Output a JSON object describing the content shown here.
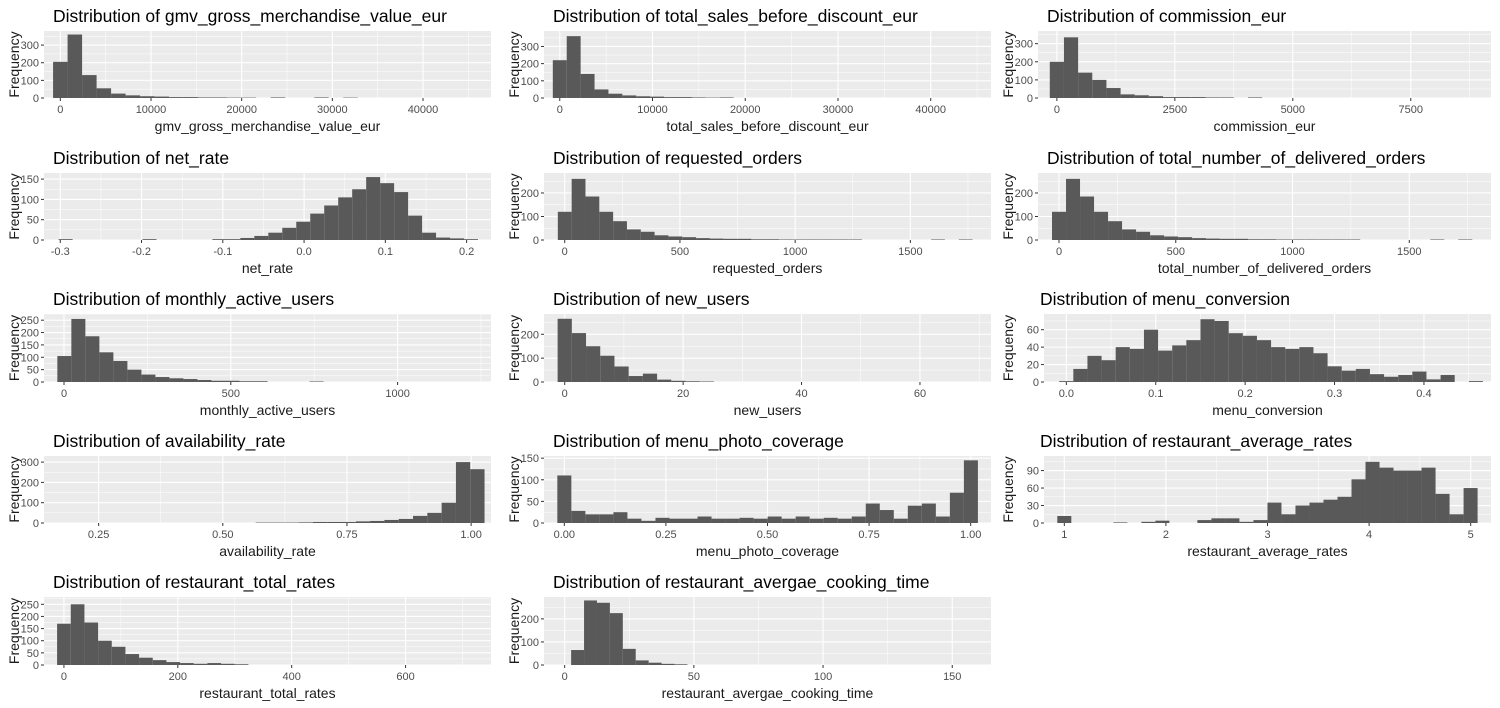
{
  "chart_data": [
    {
      "type": "bar",
      "variant": "histogram",
      "title": "Distribution of gmv_gross_merchandise_value_eur",
      "xlabel": "gmv_gross_merchandise_value_eur",
      "ylabel": "Frequency",
      "xlim": [
        -1800,
        47500
      ],
      "ylim": [
        0,
        380
      ],
      "xticks": [
        0,
        10000,
        20000,
        30000,
        40000
      ],
      "yticks": [
        0,
        100,
        200,
        300
      ],
      "bin_start": -800,
      "bin_width": 1600,
      "values": [
        205,
        360,
        130,
        55,
        25,
        15,
        10,
        8,
        5,
        5,
        3,
        3,
        2,
        2,
        0,
        3,
        0,
        0,
        3,
        0,
        2,
        0,
        0,
        0,
        0,
        0,
        0,
        0,
        0,
        0
      ]
    },
    {
      "type": "bar",
      "variant": "histogram",
      "title": "Distribution of total_sales_before_discount_eur",
      "xlabel": "total_sales_before_discount_eur",
      "ylabel": "Frequency",
      "xlim": [
        -1700,
        46500
      ],
      "ylim": [
        0,
        390
      ],
      "xticks": [
        0,
        10000,
        20000,
        30000,
        40000
      ],
      "yticks": [
        0,
        100,
        200,
        300
      ],
      "bin_start": -750,
      "bin_width": 1500,
      "values": [
        220,
        360,
        140,
        50,
        25,
        15,
        10,
        8,
        5,
        5,
        3,
        2,
        3,
        0,
        0,
        0,
        0,
        0,
        0,
        0,
        0,
        0,
        0,
        0,
        0,
        0,
        0,
        0,
        0,
        0
      ]
    },
    {
      "type": "bar",
      "variant": "histogram",
      "title": "Distribution of commission_eur",
      "xlabel": "commission_eur",
      "ylabel": "Frequency",
      "xlim": [
        -400,
        9200
      ],
      "ylim": [
        0,
        370
      ],
      "xticks": [
        0,
        2500,
        5000,
        7500
      ],
      "yticks": [
        0,
        100,
        200,
        300
      ],
      "bin_start": -150,
      "bin_width": 300,
      "values": [
        200,
        335,
        140,
        100,
        55,
        20,
        15,
        10,
        5,
        5,
        5,
        3,
        3,
        0,
        3,
        0,
        0,
        0,
        0,
        0,
        0,
        0,
        0,
        0,
        0,
        0,
        0,
        0,
        0,
        0
      ]
    },
    {
      "type": "bar",
      "variant": "histogram",
      "title": "Distribution of net_rate",
      "xlabel": "net_rate",
      "ylabel": "Frequency",
      "xlim": [
        -0.32,
        0.23
      ],
      "ylim": [
        0,
        165
      ],
      "xticks": [
        -0.3,
        -0.2,
        -0.1,
        0.0,
        0.1,
        0.2
      ],
      "yticks": [
        0,
        50,
        100,
        150
      ],
      "bin_start": -0.302,
      "bin_width": 0.0172,
      "values": [
        2,
        0,
        0,
        0,
        0,
        0,
        2,
        0,
        0,
        0,
        0,
        2,
        2,
        5,
        10,
        18,
        30,
        45,
        65,
        85,
        105,
        125,
        155,
        140,
        118,
        60,
        18,
        6,
        4,
        2
      ]
    },
    {
      "type": "bar",
      "variant": "histogram",
      "title": "Distribution of requested_orders",
      "xlabel": "requested_orders",
      "ylabel": "Frequency",
      "xlim": [
        -90,
        1850
      ],
      "ylim": [
        0,
        285
      ],
      "xticks": [
        0,
        500,
        1000,
        1500
      ],
      "yticks": [
        0,
        100,
        200
      ],
      "bin_start": -30,
      "bin_width": 60,
      "values": [
        120,
        260,
        185,
        120,
        80,
        45,
        35,
        20,
        15,
        12,
        8,
        6,
        5,
        5,
        3,
        3,
        2,
        2,
        2,
        2,
        2,
        2,
        0,
        0,
        0,
        0,
        0,
        2,
        0,
        2
      ]
    },
    {
      "type": "bar",
      "variant": "histogram",
      "title": "Distribution of total_number_of_delivered_orders",
      "xlabel": "total_number_of_delivered_orders",
      "ylabel": "Frequency",
      "xlim": [
        -90,
        1850
      ],
      "ylim": [
        0,
        285
      ],
      "xticks": [
        0,
        500,
        1000,
        1500
      ],
      "yticks": [
        0,
        100,
        200
      ],
      "bin_start": -30,
      "bin_width": 60,
      "values": [
        120,
        260,
        185,
        120,
        80,
        45,
        35,
        20,
        15,
        12,
        8,
        6,
        5,
        5,
        3,
        3,
        2,
        2,
        2,
        2,
        2,
        2,
        0,
        0,
        0,
        0,
        0,
        2,
        0,
        2
      ]
    },
    {
      "type": "bar",
      "variant": "histogram",
      "title": "Distribution of monthly_active_users",
      "xlabel": "monthly_active_users",
      "ylabel": "Frequency",
      "xlim": [
        -60,
        1280
      ],
      "ylim": [
        0,
        275
      ],
      "xticks": [
        0,
        500,
        1000
      ],
      "yticks": [
        0,
        50,
        100,
        150,
        200,
        250
      ],
      "bin_start": -20,
      "bin_width": 42,
      "values": [
        105,
        255,
        185,
        120,
        85,
        50,
        30,
        20,
        15,
        12,
        8,
        5,
        5,
        3,
        3,
        0,
        0,
        0,
        2,
        0,
        0,
        0,
        0,
        0,
        0,
        0,
        0,
        0,
        0,
        0
      ]
    },
    {
      "type": "bar",
      "variant": "histogram",
      "title": "Distribution of new_users",
      "xlabel": "new_users",
      "ylabel": "Frequency",
      "xlim": [
        -3.5,
        72
      ],
      "ylim": [
        0,
        285
      ],
      "xticks": [
        0,
        20,
        40,
        60
      ],
      "yticks": [
        0,
        100,
        200
      ],
      "bin_start": -1.2,
      "bin_width": 2.4,
      "values": [
        265,
        205,
        150,
        110,
        65,
        25,
        35,
        10,
        5,
        3,
        2,
        0,
        0,
        0,
        0,
        0,
        0,
        0,
        0,
        0,
        0,
        0,
        0,
        0,
        0,
        0,
        0,
        0,
        0,
        0
      ]
    },
    {
      "type": "bar",
      "variant": "histogram",
      "title": "Distribution of menu_conversion",
      "xlabel": "menu_conversion",
      "ylabel": "Frequency",
      "xlim": [
        -0.025,
        0.475
      ],
      "ylim": [
        0,
        78
      ],
      "xticks": [
        0.0,
        0.1,
        0.2,
        0.3,
        0.4
      ],
      "yticks": [
        0,
        20,
        40,
        60
      ],
      "bin_start": -0.008,
      "bin_width": 0.0158,
      "values": [
        1,
        15,
        30,
        25,
        40,
        38,
        60,
        36,
        42,
        48,
        72,
        70,
        56,
        53,
        48,
        40,
        38,
        40,
        33,
        18,
        13,
        15,
        9,
        6,
        8,
        12,
        3,
        8,
        0,
        1
      ]
    },
    {
      "type": "bar",
      "variant": "histogram",
      "title": "Distribution of availability_rate",
      "xlabel": "availability_rate",
      "ylabel": "Frequency",
      "xlim": [
        0.14,
        1.04
      ],
      "ylim": [
        0,
        330
      ],
      "xticks": [
        0.25,
        0.5,
        0.75,
        1.0
      ],
      "yticks": [
        0,
        100,
        200,
        300
      ],
      "bin_start": 0.163,
      "bin_width": 0.0288,
      "values": [
        0,
        0,
        0,
        0,
        0,
        0,
        0,
        0,
        0,
        0,
        0,
        0,
        0,
        0,
        2,
        2,
        2,
        3,
        5,
        5,
        5,
        8,
        10,
        15,
        20,
        35,
        50,
        100,
        300,
        265
      ]
    },
    {
      "type": "bar",
      "variant": "histogram",
      "title": "Distribution of menu_photo_coverage",
      "xlabel": "menu_photo_coverage",
      "ylabel": "Frequency",
      "xlim": [
        -0.05,
        1.05
      ],
      "ylim": [
        0,
        155
      ],
      "xticks": [
        0.0,
        0.25,
        0.5,
        0.75,
        1.0
      ],
      "yticks": [
        0,
        50,
        100,
        150
      ],
      "bin_start": -0.0172,
      "bin_width": 0.0345,
      "values": [
        110,
        28,
        20,
        20,
        25,
        10,
        5,
        12,
        10,
        10,
        15,
        10,
        10,
        12,
        10,
        15,
        10,
        15,
        10,
        12,
        10,
        15,
        45,
        30,
        10,
        40,
        45,
        15,
        70,
        145
      ]
    },
    {
      "type": "bar",
      "variant": "histogram",
      "title": "Distribution of restaurant_average_rates",
      "xlabel": "restaurant_average_rates",
      "ylabel": "Frequency",
      "xlim": [
        0.8,
        5.2
      ],
      "ylim": [
        0,
        115
      ],
      "xticks": [
        1,
        2,
        3,
        4,
        5
      ],
      "yticks": [
        0,
        30,
        60,
        90
      ],
      "bin_start": 0.931,
      "bin_width": 0.1379,
      "values": [
        12,
        0,
        0,
        0,
        1,
        0,
        2,
        4,
        0,
        0,
        5,
        8,
        8,
        2,
        5,
        35,
        15,
        30,
        35,
        40,
        45,
        75,
        105,
        95,
        90,
        90,
        95,
        50,
        15,
        60
      ]
    },
    {
      "type": "bar",
      "variant": "histogram",
      "title": "Distribution of restaurant_total_rates",
      "xlabel": "restaurant_total_rates",
      "ylabel": "Frequency",
      "xlim": [
        -35,
        750
      ],
      "ylim": [
        0,
        280
      ],
      "xticks": [
        0,
        200,
        400,
        600
      ],
      "yticks": [
        0,
        50,
        100,
        150,
        200,
        250
      ],
      "bin_start": -12,
      "bin_width": 24,
      "values": [
        170,
        250,
        175,
        100,
        75,
        45,
        30,
        20,
        12,
        8,
        5,
        8,
        5,
        3,
        0,
        0,
        0,
        0,
        0,
        0,
        0,
        0,
        0,
        0,
        0,
        0,
        0,
        0,
        0,
        0
      ]
    },
    {
      "type": "bar",
      "variant": "histogram",
      "title": "Distribution of restaurant_avergae_cooking_time",
      "xlabel": "restaurant_avergae_cooking_time",
      "ylabel": "Frequency",
      "xlim": [
        -8,
        165
      ],
      "ylim": [
        0,
        295
      ],
      "xticks": [
        0,
        50,
        100,
        150
      ],
      "yticks": [
        0,
        100,
        200
      ],
      "bin_start": 2.5,
      "bin_width": 5,
      "values": [
        65,
        280,
        270,
        225,
        70,
        20,
        10,
        5,
        3,
        0,
        0,
        0,
        0,
        0,
        0,
        0,
        0,
        0,
        0,
        0,
        0,
        0,
        0,
        0,
        0,
        0,
        0,
        0,
        0,
        0
      ]
    }
  ]
}
